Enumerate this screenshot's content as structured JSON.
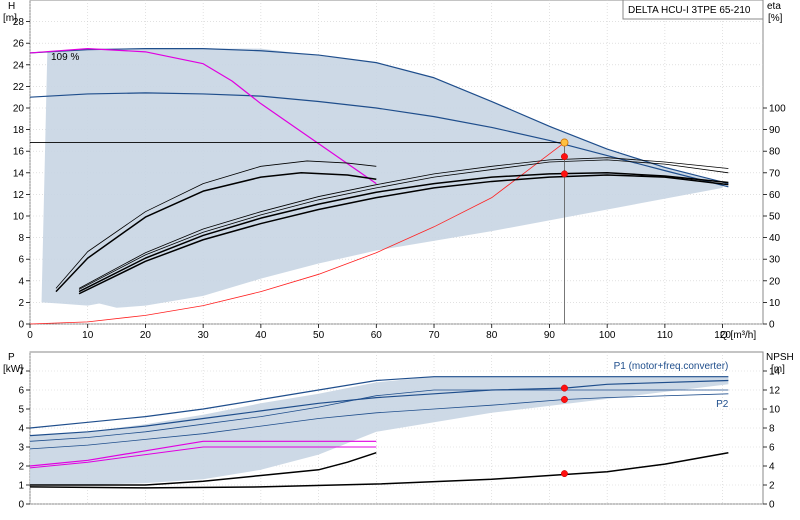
{
  "chart_data": {
    "type": "line",
    "title": "DELTA HCU-I 3TPE 65-210",
    "top": {
      "left_axis": {
        "label_top": "H",
        "label_unit": "[m]",
        "ticks": [
          0,
          2,
          4,
          6,
          8,
          10,
          12,
          14,
          16,
          18,
          20,
          22,
          24,
          26,
          28
        ],
        "ylim": [
          0,
          30
        ]
      },
      "right_axis": {
        "label_top": "eta",
        "label_unit": "[%]",
        "ticks": [
          0,
          10,
          20,
          30,
          40,
          50,
          60,
          70,
          80,
          90,
          100
        ]
      },
      "x_axis": {
        "label": "Q [m³/h]",
        "ticks": [
          0,
          10,
          20,
          30,
          40,
          50,
          60,
          70,
          80,
          90,
          100,
          110,
          120
        ],
        "xlim": [
          0,
          127
        ]
      },
      "annotation": "109 %",
      "region": [
        [
          2,
          2
        ],
        [
          3,
          25.2
        ],
        [
          10,
          25.5
        ],
        [
          40,
          25.5
        ],
        [
          60,
          24.2
        ],
        [
          70,
          22.8
        ],
        [
          80,
          20.6
        ],
        [
          90,
          18.3
        ],
        [
          100,
          16.2
        ],
        [
          120,
          13
        ],
        [
          120,
          12.6
        ],
        [
          80,
          8.6
        ],
        [
          60,
          6.8
        ],
        [
          50,
          5.6
        ],
        [
          40,
          4.2
        ],
        [
          30,
          2.6
        ],
        [
          20,
          1.7
        ],
        [
          15,
          1.5
        ],
        [
          12,
          1.9
        ],
        [
          10,
          1.7
        ],
        [
          5,
          1.9
        ],
        [
          2,
          2
        ]
      ],
      "series": [
        {
          "id": "h_max",
          "color": "#1f4e8c",
          "width": 1.2,
          "points": [
            [
              0,
              25.1
            ],
            [
              10,
              25.4
            ],
            [
              20,
              25.5
            ],
            [
              30,
              25.5
            ],
            [
              40,
              25.3
            ],
            [
              50,
              24.9
            ],
            [
              60,
              24.2
            ],
            [
              70,
              22.8
            ],
            [
              80,
              20.6
            ],
            [
              90,
              18.3
            ],
            [
              100,
              16.2
            ],
            [
              110,
              14.5
            ],
            [
              121,
              13
            ]
          ]
        },
        {
          "id": "h_mid",
          "color": "#1f4e8c",
          "width": 1.2,
          "points": [
            [
              0,
              21
            ],
            [
              10,
              21.3
            ],
            [
              20,
              21.4
            ],
            [
              30,
              21.3
            ],
            [
              40,
              21.1
            ],
            [
              50,
              20.6
            ],
            [
              60,
              20
            ],
            [
              70,
              19.2
            ],
            [
              80,
              18.2
            ],
            [
              90,
              17
            ],
            [
              100,
              15.6
            ],
            [
              110,
              14.2
            ],
            [
              121,
              12.7
            ]
          ]
        },
        {
          "id": "h_overload",
          "color": "#e000e0",
          "width": 1.2,
          "points": [
            [
              0,
              25.1
            ],
            [
              10,
              25.5
            ],
            [
              20,
              25.2
            ],
            [
              30,
              24.1
            ],
            [
              35,
              22.5
            ],
            [
              40,
              20.4
            ],
            [
              50,
              16.7
            ],
            [
              60,
              13
            ]
          ]
        },
        {
          "id": "h_setpoint",
          "color": "#000000",
          "width": 0.8,
          "points": [
            [
              0,
              16.8
            ],
            [
              92.6,
              16.8
            ]
          ]
        },
        {
          "id": "system",
          "color": "#ff2020",
          "width": 0.8,
          "points": [
            [
              0,
              0
            ],
            [
              10,
              0.2
            ],
            [
              20,
              0.8
            ],
            [
              30,
              1.7
            ],
            [
              40,
              3
            ],
            [
              50,
              4.6
            ],
            [
              60,
              6.6
            ],
            [
              70,
              9
            ],
            [
              80,
              11.7
            ],
            [
              92.6,
              16.8
            ]
          ]
        },
        {
          "id": "hyd_eff",
          "color": "#000000",
          "width": 0.8,
          "points": [
            [
              4.5,
              3.3
            ],
            [
              10,
              6.7
            ],
            [
              20,
              10.4
            ],
            [
              30,
              13
            ],
            [
              40,
              14.6
            ],
            [
              48,
              15.1
            ],
            [
              55,
              14.9
            ],
            [
              60,
              14.6
            ]
          ]
        },
        {
          "id": "eta_a",
          "color": "#000000",
          "width": 1.5,
          "points": [
            [
              4.5,
              3
            ],
            [
              10,
              6.1
            ],
            [
              20,
              9.9
            ],
            [
              30,
              12.3
            ],
            [
              40,
              13.6
            ],
            [
              47,
              14
            ],
            [
              55,
              13.8
            ],
            [
              60,
              13.4
            ]
          ]
        },
        {
          "id": "eta_b",
          "color": "#000000",
          "width": 0.8,
          "points": [
            [
              8.5,
              3.3
            ],
            [
              20,
              6.6
            ],
            [
              30,
              8.8
            ],
            [
              40,
              10.4
            ],
            [
              50,
              11.8
            ],
            [
              60,
              12.9
            ],
            [
              70,
              13.9
            ],
            [
              80,
              14.6
            ],
            [
              90,
              15.2
            ],
            [
              100,
              15.4
            ],
            [
              110,
              15
            ],
            [
              121,
              14.4
            ]
          ]
        },
        {
          "id": "eta_c",
          "color": "#000000",
          "width": 0.8,
          "points": [
            [
              8.5,
              3.2
            ],
            [
              20,
              6.4
            ],
            [
              30,
              8.5
            ],
            [
              40,
              10.1
            ],
            [
              50,
              11.5
            ],
            [
              60,
              12.6
            ],
            [
              70,
              13.6
            ],
            [
              80,
              14.3
            ],
            [
              90,
              15
            ],
            [
              100,
              15.2
            ],
            [
              110,
              14.8
            ],
            [
              121,
              14
            ]
          ]
        },
        {
          "id": "eta_d",
          "color": "#000000",
          "width": 1.5,
          "points": [
            [
              8.5,
              3
            ],
            [
              20,
              6.1
            ],
            [
              30,
              8.2
            ],
            [
              40,
              9.8
            ],
            [
              50,
              11.1
            ],
            [
              60,
              12.2
            ],
            [
              70,
              13
            ],
            [
              80,
              13.6
            ],
            [
              90,
              13.9
            ],
            [
              100,
              14
            ],
            [
              110,
              13.7
            ],
            [
              121,
              13.1
            ]
          ]
        },
        {
          "id": "eta_e",
          "color": "#000000",
          "width": 1.5,
          "points": [
            [
              8.5,
              2.8
            ],
            [
              20,
              5.8
            ],
            [
              30,
              7.8
            ],
            [
              40,
              9.3
            ],
            [
              50,
              10.6
            ],
            [
              60,
              11.7
            ],
            [
              70,
              12.6
            ],
            [
              80,
              13.2
            ],
            [
              90,
              13.6
            ],
            [
              100,
              13.8
            ],
            [
              110,
              13.6
            ],
            [
              121,
              12.9
            ]
          ]
        }
      ],
      "operating_point": {
        "x": 92.6,
        "y": 16.8,
        "drop_to": 0
      },
      "markers": [
        {
          "x": 92.6,
          "y": 15.5
        },
        {
          "x": 92.6,
          "y": 13.9
        }
      ]
    },
    "bottom": {
      "left_axis": {
        "label_top": "P",
        "label_unit": "[kW]",
        "ticks": [
          0,
          1,
          2,
          3,
          4,
          5,
          6,
          7
        ],
        "ylim": [
          0,
          8
        ]
      },
      "right_axis": {
        "label_top": "NPSH",
        "label_unit": "[m]",
        "ticks": [
          0,
          2,
          4,
          6,
          8,
          10,
          12,
          14
        ]
      },
      "x_axis": {
        "xlim": [
          0,
          127
        ]
      },
      "region": [
        [
          0,
          3.6
        ],
        [
          10,
          3.8
        ],
        [
          20,
          4.2
        ],
        [
          30,
          4.7
        ],
        [
          40,
          5.3
        ],
        [
          50,
          5.8
        ],
        [
          60,
          6.4
        ],
        [
          70,
          6.7
        ],
        [
          121,
          6.7
        ],
        [
          121,
          6.3
        ],
        [
          80,
          4.8
        ],
        [
          60,
          3.8
        ],
        [
          50,
          2.6
        ],
        [
          40,
          1.8
        ],
        [
          30,
          1.3
        ],
        [
          20,
          1.1
        ],
        [
          10,
          1
        ],
        [
          0,
          1
        ]
      ],
      "series": [
        {
          "id": "p1_max",
          "color": "#1f4e8c",
          "width": 1.2,
          "points": [
            [
              0,
              4
            ],
            [
              10,
              4.3
            ],
            [
              20,
              4.6
            ],
            [
              30,
              5
            ],
            [
              40,
              5.5
            ],
            [
              50,
              6
            ],
            [
              60,
              6.5
            ],
            [
              70,
              6.7
            ],
            [
              121,
              6.7
            ]
          ]
        },
        {
          "id": "p1_op",
          "color": "#1f4e8c",
          "width": 1.2,
          "points": [
            [
              0,
              3.6
            ],
            [
              10,
              3.8
            ],
            [
              20,
              4.1
            ],
            [
              30,
              4.5
            ],
            [
              40,
              4.9
            ],
            [
              50,
              5.3
            ],
            [
              60,
              5.6
            ],
            [
              70,
              5.8
            ],
            [
              80,
              6
            ],
            [
              92.6,
              6.1
            ],
            [
              100,
              6.3
            ],
            [
              121,
              6.5
            ]
          ]
        },
        {
          "id": "p2_max",
          "color": "#1f4e8c",
          "width": 0.8,
          "points": [
            [
              0,
              3.3
            ],
            [
              10,
              3.5
            ],
            [
              20,
              3.8
            ],
            [
              30,
              4.2
            ],
            [
              40,
              4.6
            ],
            [
              50,
              5.1
            ],
            [
              60,
              5.7
            ],
            [
              70,
              6
            ],
            [
              121,
              6
            ]
          ]
        },
        {
          "id": "p2_op",
          "color": "#1f4e8c",
          "width": 0.8,
          "points": [
            [
              0,
              2.9
            ],
            [
              10,
              3.1
            ],
            [
              20,
              3.4
            ],
            [
              30,
              3.7
            ],
            [
              40,
              4.1
            ],
            [
              50,
              4.5
            ],
            [
              60,
              4.8
            ],
            [
              70,
              5
            ],
            [
              80,
              5.2
            ],
            [
              92.6,
              5.5
            ],
            [
              100,
              5.6
            ],
            [
              121,
              5.8
            ]
          ]
        },
        {
          "id": "p_overload_a",
          "color": "#e000e0",
          "width": 1.2,
          "points": [
            [
              0,
              2
            ],
            [
              10,
              2.3
            ],
            [
              20,
              2.8
            ],
            [
              30,
              3.3
            ],
            [
              60,
              3.3
            ]
          ]
        },
        {
          "id": "p_overload_b",
          "color": "#e000e0",
          "width": 1,
          "points": [
            [
              0,
              1.9
            ],
            [
              10,
              2.2
            ],
            [
              20,
              2.6
            ],
            [
              30,
              3
            ],
            [
              60,
              3
            ]
          ]
        },
        {
          "id": "npsh_a",
          "color": "#000000",
          "width": 1.5,
          "points": [
            [
              0,
              1
            ],
            [
              20,
              1
            ],
            [
              30,
              1.2
            ],
            [
              40,
              1.5
            ],
            [
              50,
              1.8
            ],
            [
              55,
              2.2
            ],
            [
              60,
              2.7
            ]
          ]
        },
        {
          "id": "npsh_b",
          "color": "#000000",
          "width": 1.5,
          "points": [
            [
              0,
              0.9
            ],
            [
              20,
              0.85
            ],
            [
              40,
              0.9
            ],
            [
              60,
              1.05
            ],
            [
              80,
              1.3
            ],
            [
              92.6,
              1.55
            ],
            [
              100,
              1.7
            ],
            [
              110,
              2.1
            ],
            [
              121,
              2.7
            ]
          ]
        }
      ],
      "markers": [
        {
          "x": 92.6,
          "y": 6.1
        },
        {
          "x": 92.6,
          "y": 5.5
        },
        {
          "x": 92.6,
          "y": 1.6
        }
      ],
      "legend": [
        {
          "label": "P1 (motor+freq.converter)",
          "anchor_x": 121,
          "anchor_y": 7.1,
          "align": "end"
        },
        {
          "label": "P2",
          "anchor_x": 121,
          "anchor_y": 5.1,
          "align": "end"
        }
      ]
    }
  }
}
